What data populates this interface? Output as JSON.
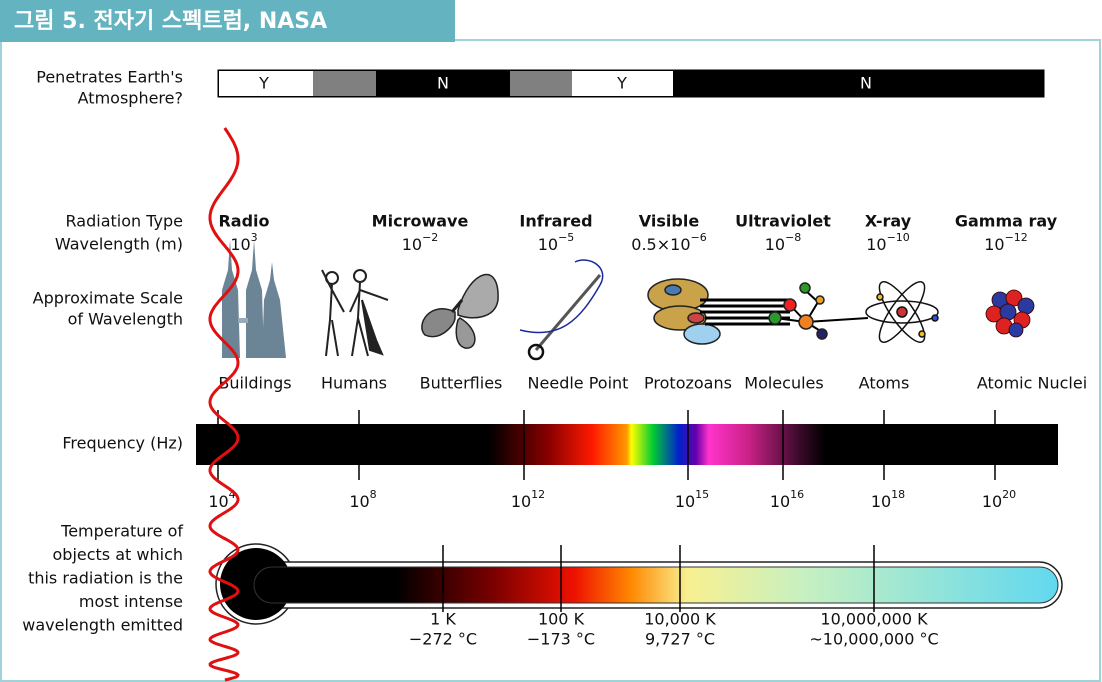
{
  "header": {
    "title": "그림 5.  전자기 스펙트럼, NASA"
  },
  "atmosphere": {
    "label": [
      "Penetrates Earth's",
      "Atmosphere?"
    ],
    "segments": [
      "Y",
      "N",
      "Y",
      "N"
    ]
  },
  "radiation": {
    "label": "Radiation Type",
    "types": [
      "Radio",
      "Microwave",
      "Infrared",
      "Visible",
      "Ultraviolet",
      "X-ray",
      "Gamma ray"
    ]
  },
  "wavelength": {
    "label": "Wavelength (m)",
    "values": [
      {
        "base": "10",
        "exp": "3"
      },
      {
        "base": "10",
        "exp": "−2"
      },
      {
        "base": "10",
        "exp": "−5"
      },
      {
        "base": "0.5×10",
        "exp": "−6"
      },
      {
        "base": "10",
        "exp": "−8"
      },
      {
        "base": "10",
        "exp": "−10"
      },
      {
        "base": "10",
        "exp": "−12"
      }
    ]
  },
  "scale": {
    "label": [
      "Approximate Scale",
      "of Wavelength"
    ],
    "items": [
      "Buildings",
      "Humans",
      "Butterflies",
      "Needle Point",
      "Protozoans",
      "Molecules",
      "Atoms",
      "Atomic Nuclei"
    ]
  },
  "frequency": {
    "label": "Frequency (Hz)",
    "ticks": [
      {
        "base": "10",
        "exp": "4"
      },
      {
        "base": "10",
        "exp": "8"
      },
      {
        "base": "10",
        "exp": "12"
      },
      {
        "base": "10",
        "exp": "15"
      },
      {
        "base": "10",
        "exp": "16"
      },
      {
        "base": "10",
        "exp": "18"
      },
      {
        "base": "10",
        "exp": "20"
      }
    ]
  },
  "temperature": {
    "label": [
      "Temperature of",
      "objects at which",
      "this radiation is the",
      "most intense",
      "wavelength emitted"
    ],
    "ticks": [
      {
        "k": "1 K",
        "c": "−272 °C"
      },
      {
        "k": "100 K",
        "c": "−173 °C"
      },
      {
        "k": "10,000 K",
        "c": "9,727 °C"
      },
      {
        "k": "10,000,000 K",
        "c": "~10,000,000 °C"
      }
    ]
  }
}
